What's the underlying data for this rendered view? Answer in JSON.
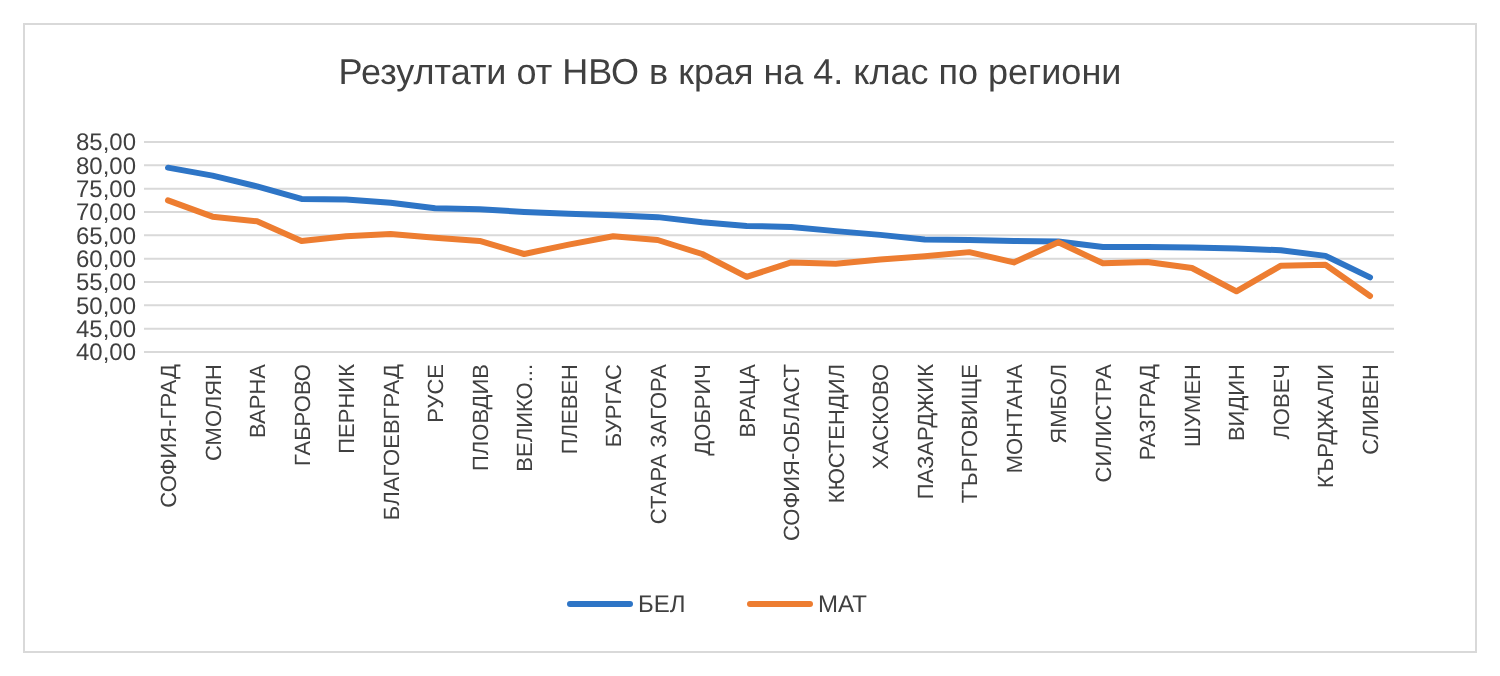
{
  "chart_data": {
    "type": "line",
    "title": "Резултати от НВО в края на 4. клас по региони",
    "categories": [
      "СОФИЯ-ГРАД",
      "СМОЛЯН",
      "ВАРНА",
      "ГАБРОВО",
      "ПЕРНИК",
      "БЛАГОЕВГРАД",
      "РУСЕ",
      "ПЛОВДИВ",
      "ВЕЛИКО...",
      "ПЛЕВЕН",
      "БУРГАС",
      "СТАРА ЗАГОРА",
      "ДОБРИЧ",
      "ВРАЦА",
      "СОФИЯ-ОБЛАСТ",
      "КЮСТЕНДИЛ",
      "ХАСКОВО",
      "ПАЗАРДЖИК",
      "ТЪРГОВИЩЕ",
      "МОНТАНА",
      "ЯМБОЛ",
      "СИЛИСТРА",
      "РАЗГРАД",
      "ШУМЕН",
      "ВИДИН",
      "ЛОВЕЧ",
      "КЪРДЖАЛИ",
      "СЛИВЕН"
    ],
    "series": [
      {
        "name": "БЕЛ",
        "color": "#2e75c6",
        "values": [
          79.5,
          77.8,
          75.5,
          72.8,
          72.7,
          72,
          70.8,
          70.6,
          70,
          69.6,
          69.3,
          68.9,
          67.8,
          67,
          66.8,
          65.9,
          65.1,
          64.1,
          64,
          63.8,
          63.7,
          62.5,
          62.5,
          62.4,
          62.2,
          61.8,
          60.6,
          56
        ]
      },
      {
        "name": "МАТ",
        "color": "#ed7d31",
        "values": [
          72.5,
          69,
          68,
          63.8,
          64.8,
          65.3,
          64.5,
          63.8,
          61,
          63,
          64.8,
          64,
          61,
          56.1,
          59.2,
          58.9,
          59.8,
          60.5,
          61.4,
          59.2,
          63.5,
          59,
          59.3,
          58,
          53,
          58.5,
          58.7,
          52
        ]
      }
    ],
    "ylim": [
      40,
      85
    ],
    "yticks": [
      {
        "value": 40,
        "label": "40,00"
      },
      {
        "value": 45,
        "label": "45,00"
      },
      {
        "value": 50,
        "label": "50,00"
      },
      {
        "value": 55,
        "label": "55,00"
      },
      {
        "value": 60,
        "label": "60,00"
      },
      {
        "value": 65,
        "label": "65,00"
      },
      {
        "value": 70,
        "label": "70,00"
      },
      {
        "value": 75,
        "label": "75,00"
      },
      {
        "value": 80,
        "label": "80,00"
      },
      {
        "value": 85,
        "label": "85,00"
      }
    ],
    "grid": "y",
    "legend": "bottom",
    "marker": "none",
    "line_style": "solid"
  }
}
